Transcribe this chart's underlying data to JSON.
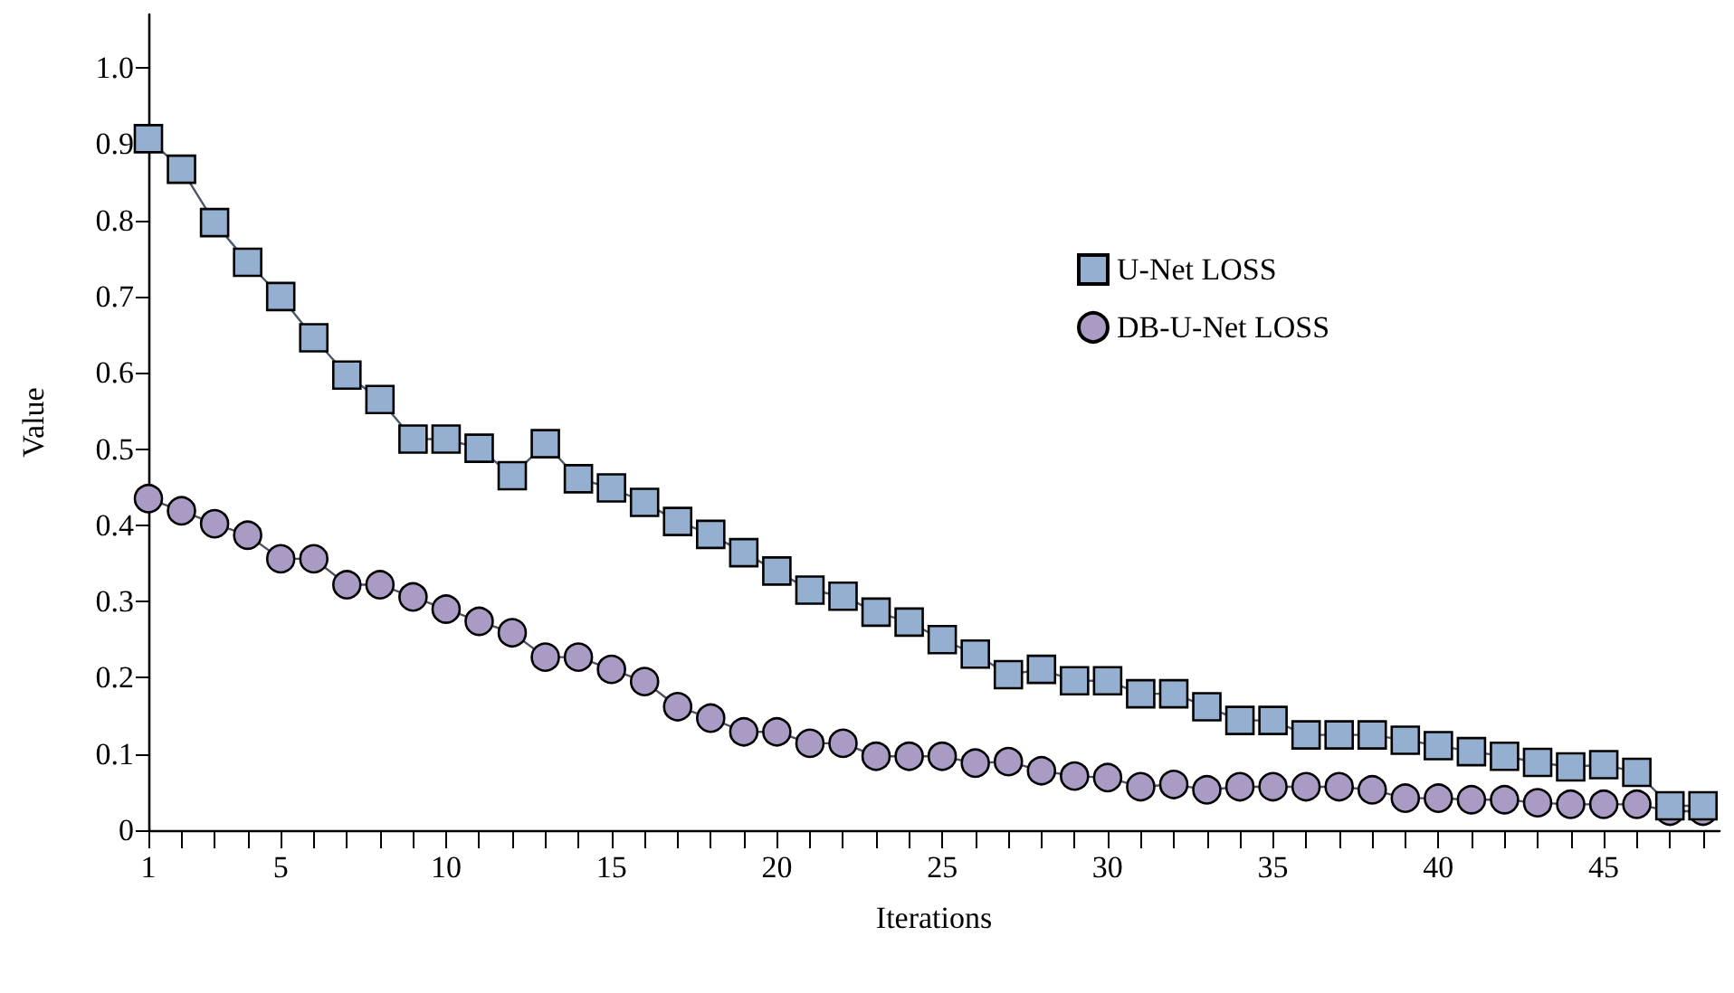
{
  "chart_data": {
    "type": "line",
    "xlabel": "Iterations",
    "ylabel": "Value",
    "x": [
      1,
      2,
      3,
      4,
      5,
      6,
      7,
      8,
      9,
      10,
      11,
      12,
      13,
      14,
      15,
      16,
      17,
      18,
      19,
      20,
      21,
      22,
      23,
      24,
      25,
      26,
      27,
      28,
      29,
      30,
      31,
      32,
      33,
      34,
      35,
      36,
      37,
      38,
      39,
      40,
      41,
      42,
      43,
      44,
      45,
      46,
      47,
      48
    ],
    "series": [
      {
        "name": "U-Net LOSS",
        "color": "#94afd0",
        "marker": "square",
        "values": [
          0.907,
          0.867,
          0.797,
          0.745,
          0.7,
          0.646,
          0.597,
          0.565,
          0.513,
          0.513,
          0.501,
          0.465,
          0.507,
          0.461,
          0.449,
          0.43,
          0.405,
          0.388,
          0.364,
          0.34,
          0.315,
          0.307,
          0.286,
          0.273,
          0.25,
          0.231,
          0.204,
          0.211,
          0.196,
          0.196,
          0.179,
          0.179,
          0.162,
          0.144,
          0.144,
          0.125,
          0.125,
          0.125,
          0.118,
          0.111,
          0.103,
          0.097,
          0.089,
          0.083,
          0.086,
          0.076,
          0.032,
          0.032
        ]
      },
      {
        "name": "DB-U-Net LOSS",
        "color": "#a99bc4",
        "marker": "circle",
        "values": [
          0.435,
          0.419,
          0.402,
          0.387,
          0.356,
          0.356,
          0.322,
          0.322,
          0.306,
          0.29,
          0.274,
          0.259,
          0.227,
          0.227,
          0.211,
          0.195,
          0.162,
          0.147,
          0.129,
          0.129,
          0.114,
          0.114,
          0.097,
          0.097,
          0.097,
          0.088,
          0.09,
          0.078,
          0.071,
          0.069,
          0.057,
          0.06,
          0.053,
          0.057,
          0.057,
          0.057,
          0.057,
          0.053,
          0.042,
          0.042,
          0.04,
          0.04,
          0.036,
          0.034,
          0.034,
          0.034,
          0.025,
          0.025
        ]
      }
    ],
    "xlim": [
      1,
      48.5
    ],
    "xticks": [
      1,
      {
        "value": 2,
        "label": null
      },
      {
        "value": 3,
        "label": null
      },
      {
        "value": 4,
        "label": null
      },
      5,
      {
        "value": 6,
        "label": null
      },
      {
        "value": 7,
        "label": null
      },
      {
        "value": 8,
        "label": null
      },
      {
        "value": 9,
        "label": null
      },
      10,
      {
        "value": 11,
        "label": null
      },
      {
        "value": 12,
        "label": null
      },
      {
        "value": 13,
        "label": null
      },
      {
        "value": 14,
        "label": null
      },
      15,
      {
        "value": 16,
        "label": null
      },
      {
        "value": 17,
        "label": null
      },
      {
        "value": 18,
        "label": null
      },
      {
        "value": 19,
        "label": null
      },
      20,
      {
        "value": 21,
        "label": null
      },
      {
        "value": 22,
        "label": null
      },
      {
        "value": 23,
        "label": null
      },
      {
        "value": 24,
        "label": null
      },
      25,
      {
        "value": 26,
        "label": null
      },
      {
        "value": 27,
        "label": null
      },
      {
        "value": 28,
        "label": null
      },
      {
        "value": 29,
        "label": null
      },
      30,
      {
        "value": 31,
        "label": null
      },
      {
        "value": 32,
        "label": null
      },
      {
        "value": 33,
        "label": null
      },
      {
        "value": 34,
        "label": null
      },
      35,
      {
        "value": 36,
        "label": null
      },
      {
        "value": 37,
        "label": null
      },
      {
        "value": 38,
        "label": null
      },
      {
        "value": 39,
        "label": null
      },
      40,
      {
        "value": 41,
        "label": null
      },
      {
        "value": 42,
        "label": null
      },
      {
        "value": 43,
        "label": null
      },
      {
        "value": 44,
        "label": null
      },
      45,
      {
        "value": 46,
        "label": null
      },
      {
        "value": 47,
        "label": null
      },
      {
        "value": 48,
        "label": null
      }
    ],
    "ylim": [
      0,
      1.07
    ],
    "yticks": [
      0,
      0.1,
      0.2,
      0.3,
      0.4,
      0.5,
      0.6,
      0.7,
      0.8,
      0.9,
      {
        "value": 1,
        "label": "1.0"
      }
    ],
    "grid": false,
    "legend": "top right",
    "line_style": "solid"
  }
}
